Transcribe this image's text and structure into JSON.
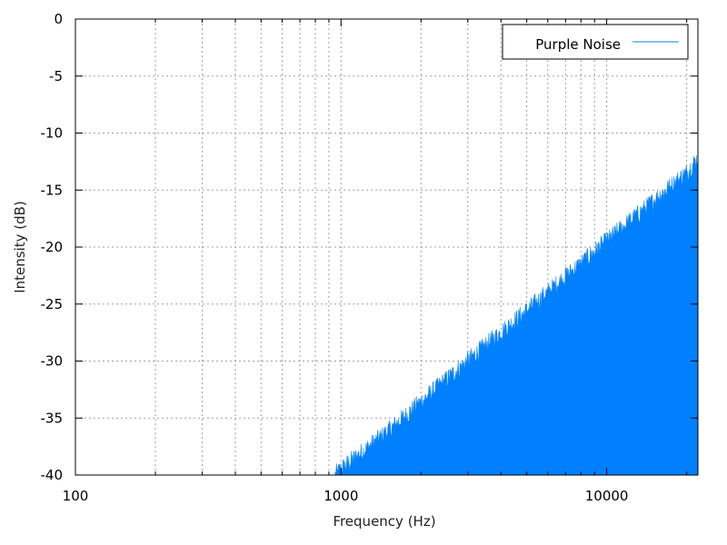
{
  "chart_data": {
    "type": "area",
    "xlabel": "Frequency (Hz)",
    "ylabel": "Intensity (dB)",
    "xscale": "log",
    "xlim": [
      100,
      22050
    ],
    "ylim": [
      -40,
      0
    ],
    "xticks": [
      100,
      1000,
      10000
    ],
    "xtick_labels": [
      "100",
      "1000",
      "10000"
    ],
    "yticks": [
      0,
      -5,
      -10,
      -15,
      -20,
      -25,
      -30,
      -35,
      -40
    ],
    "ytick_labels": [
      "0",
      "-5",
      "-10",
      "-15",
      "-20",
      "-25",
      "-30",
      "-35",
      "-40"
    ],
    "grid": true,
    "legend_position": "top-right",
    "series": [
      {
        "name": "Purple Noise",
        "color": "#0080ff",
        "x": [
          950,
          1000,
          1200,
          1500,
          2000,
          2500,
          3000,
          4000,
          5000,
          6000,
          7000,
          8000,
          9000,
          10000,
          12000,
          14000,
          16000,
          18000,
          20000,
          22050
        ],
        "y": [
          -40,
          -39.5,
          -38,
          -36.2,
          -33.6,
          -31.6,
          -30,
          -27.5,
          -25.6,
          -24,
          -22.6,
          -21.5,
          -20.4,
          -19.5,
          -17.9,
          -16.6,
          -15.4,
          -14.4,
          -13.5,
          -12.2
        ],
        "noise_db": 0.9
      }
    ]
  }
}
